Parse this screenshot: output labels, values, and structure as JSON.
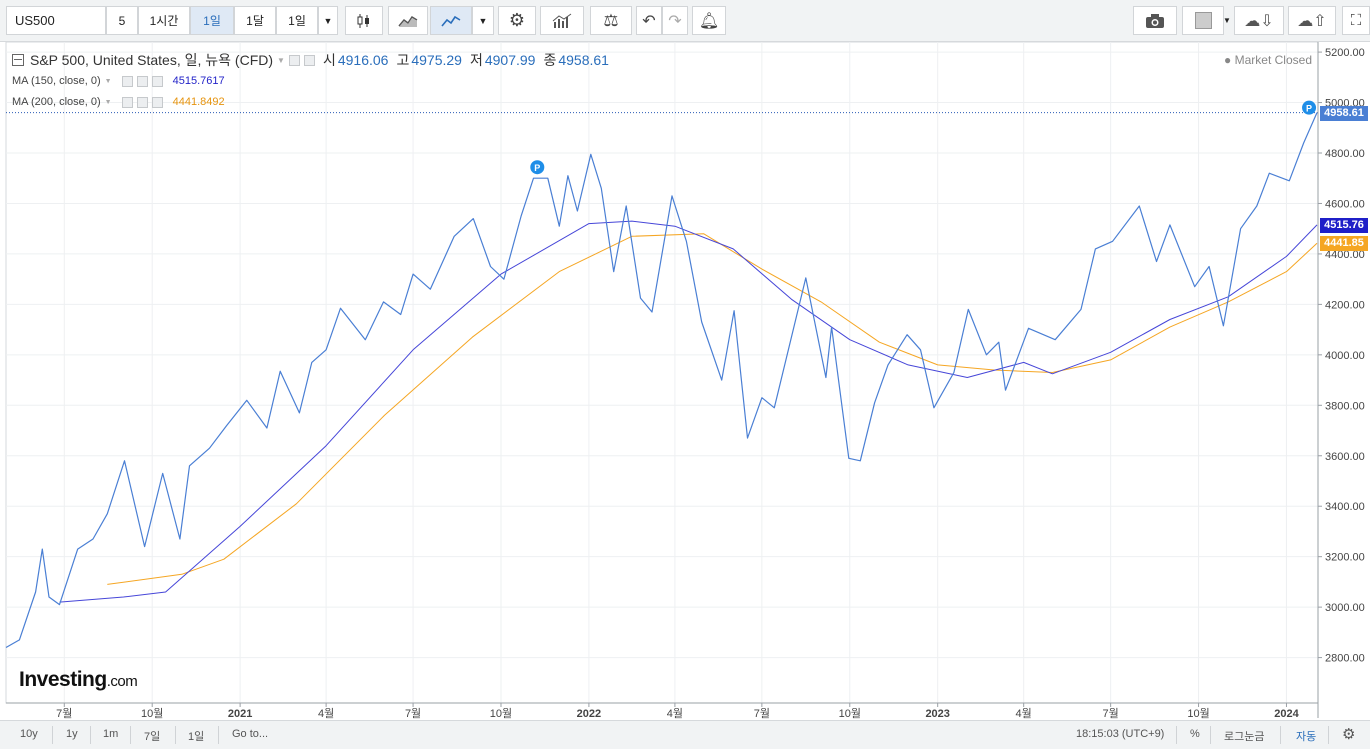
{
  "toolbar": {
    "symbol": "US500",
    "interval_5": "5",
    "interval_1h": "1시간",
    "interval_1d": "1일",
    "interval_1mo": "1달",
    "interval_1d_dropdown": "1일"
  },
  "legend": {
    "title": "S&P 500, United States, 일, 뉴욕 (CFD)",
    "open_label": "시",
    "open_value": "4916.06",
    "high_label": "고",
    "high_value": "4975.29",
    "low_label": "저",
    "low_value": "4907.99",
    "close_label": "종",
    "close_value": "4958.61",
    "ma150_label": "MA (150, close, 0)",
    "ma150_value": "4515.7617",
    "ma200_label": "MA (200, close, 0)",
    "ma200_value": "4441.8492",
    "market_status": "● Market Closed"
  },
  "price_labels": {
    "last": "4958.61",
    "ma150": "4515.76",
    "ma200": "4441.85"
  },
  "logo": {
    "brand": "Investing",
    "suffix": ".com"
  },
  "bottombar": {
    "ranges": [
      "10y",
      "1y",
      "1m",
      "7일",
      "1일"
    ],
    "goto": "Go to...",
    "time": "18:15:03 (UTC+9)",
    "percent": "%",
    "log": "로그눈금",
    "auto": "자동"
  },
  "colors": {
    "price": "#4a7fd4",
    "ma150": "#4646d8",
    "ma200": "#f5a623",
    "last_box": "#4a7fd4",
    "ma150_box": "#1f1fc8",
    "ma200_box": "#f5a623"
  },
  "chart_data": {
    "type": "line",
    "title": "S&P 500, United States, 일, 뉴욕 (CFD)",
    "ylim": [
      2620,
      5240
    ],
    "y_ticks": [
      2800,
      3000,
      3200,
      3400,
      3600,
      3800,
      4000,
      4200,
      4400,
      4600,
      4800,
      5000,
      5200
    ],
    "x_ticks": [
      "7월",
      "10월",
      "2021",
      "4월",
      "7월",
      "10월",
      "2022",
      "4월",
      "7월",
      "10월",
      "2023",
      "4월",
      "7월",
      "10월",
      "2024"
    ],
    "x_tick_dates": [
      "2020-07-01",
      "2020-10-01",
      "2021-01-01",
      "2021-04-01",
      "2021-07-01",
      "2021-10-01",
      "2022-01-01",
      "2022-04-01",
      "2022-07-01",
      "2022-10-01",
      "2023-01-01",
      "2023-04-01",
      "2023-07-01",
      "2023-10-01",
      "2024-01-01"
    ],
    "xlim": [
      "2020-05-01",
      "2024-02-03"
    ],
    "grid": true,
    "series": [
      {
        "name": "S&P 500",
        "points": [
          [
            "2020-05-01",
            2840
          ],
          [
            "2020-05-15",
            2870
          ],
          [
            "2020-06-01",
            3060
          ],
          [
            "2020-06-08",
            3230
          ],
          [
            "2020-06-15",
            3040
          ],
          [
            "2020-06-26",
            3010
          ],
          [
            "2020-07-15",
            3230
          ],
          [
            "2020-07-31",
            3270
          ],
          [
            "2020-08-15",
            3370
          ],
          [
            "2020-09-02",
            3580
          ],
          [
            "2020-09-23",
            3240
          ],
          [
            "2020-10-12",
            3530
          ],
          [
            "2020-10-30",
            3270
          ],
          [
            "2020-11-09",
            3560
          ],
          [
            "2020-11-30",
            3630
          ],
          [
            "2020-12-18",
            3720
          ],
          [
            "2021-01-08",
            3820
          ],
          [
            "2021-01-29",
            3710
          ],
          [
            "2021-02-12",
            3935
          ],
          [
            "2021-03-04",
            3770
          ],
          [
            "2021-03-17",
            3970
          ],
          [
            "2021-04-01",
            4020
          ],
          [
            "2021-04-16",
            4185
          ],
          [
            "2021-05-12",
            4060
          ],
          [
            "2021-05-31",
            4210
          ],
          [
            "2021-06-18",
            4160
          ],
          [
            "2021-07-01",
            4320
          ],
          [
            "2021-07-19",
            4260
          ],
          [
            "2021-08-13",
            4470
          ],
          [
            "2021-09-02",
            4540
          ],
          [
            "2021-09-20",
            4350
          ],
          [
            "2021-10-04",
            4300
          ],
          [
            "2021-10-22",
            4550
          ],
          [
            "2021-11-04",
            4700
          ],
          [
            "2021-11-19",
            4700
          ],
          [
            "2021-12-01",
            4510
          ],
          [
            "2021-12-10",
            4710
          ],
          [
            "2021-12-20",
            4570
          ],
          [
            "2022-01-03",
            4795
          ],
          [
            "2022-01-14",
            4660
          ],
          [
            "2022-01-27",
            4330
          ],
          [
            "2022-02-09",
            4590
          ],
          [
            "2022-02-24",
            4225
          ],
          [
            "2022-03-08",
            4170
          ],
          [
            "2022-03-29",
            4630
          ],
          [
            "2022-04-13",
            4450
          ],
          [
            "2022-04-29",
            4130
          ],
          [
            "2022-05-20",
            3900
          ],
          [
            "2022-06-02",
            4175
          ],
          [
            "2022-06-16",
            3670
          ],
          [
            "2022-07-01",
            3830
          ],
          [
            "2022-07-14",
            3790
          ],
          [
            "2022-08-16",
            4305
          ],
          [
            "2022-09-06",
            3910
          ],
          [
            "2022-09-12",
            4110
          ],
          [
            "2022-09-30",
            3590
          ],
          [
            "2022-10-12",
            3580
          ],
          [
            "2022-10-27",
            3810
          ],
          [
            "2022-11-10",
            3960
          ],
          [
            "2022-11-30",
            4080
          ],
          [
            "2022-12-14",
            4020
          ],
          [
            "2022-12-28",
            3790
          ],
          [
            "2023-01-18",
            3930
          ],
          [
            "2023-02-02",
            4180
          ],
          [
            "2023-02-21",
            4000
          ],
          [
            "2023-03-06",
            4050
          ],
          [
            "2023-03-13",
            3860
          ],
          [
            "2023-04-06",
            4105
          ],
          [
            "2023-05-04",
            4060
          ],
          [
            "2023-05-31",
            4180
          ],
          [
            "2023-06-15",
            4420
          ],
          [
            "2023-07-03",
            4450
          ],
          [
            "2023-07-31",
            4590
          ],
          [
            "2023-08-18",
            4370
          ],
          [
            "2023-09-01",
            4515
          ],
          [
            "2023-09-27",
            4270
          ],
          [
            "2023-10-12",
            4350
          ],
          [
            "2023-10-27",
            4115
          ],
          [
            "2023-11-14",
            4500
          ],
          [
            "2023-12-01",
            4590
          ],
          [
            "2023-12-14",
            4720
          ],
          [
            "2024-01-04",
            4690
          ],
          [
            "2024-01-19",
            4840
          ],
          [
            "2024-02-02",
            4960
          ]
        ]
      },
      {
        "name": "MA (150, close, 0)",
        "points": [
          [
            "2020-06-26",
            3020
          ],
          [
            "2020-09-01",
            3040
          ],
          [
            "2020-10-15",
            3060
          ],
          [
            "2021-01-01",
            3320
          ],
          [
            "2021-04-01",
            3640
          ],
          [
            "2021-07-01",
            4020
          ],
          [
            "2021-10-01",
            4320
          ],
          [
            "2022-01-01",
            4520
          ],
          [
            "2022-02-15",
            4530
          ],
          [
            "2022-04-01",
            4510
          ],
          [
            "2022-06-01",
            4420
          ],
          [
            "2022-08-01",
            4220
          ],
          [
            "2022-10-01",
            4060
          ],
          [
            "2022-12-01",
            3960
          ],
          [
            "2023-02-01",
            3910
          ],
          [
            "2023-04-01",
            3970
          ],
          [
            "2023-05-01",
            3925
          ],
          [
            "2023-07-01",
            4010
          ],
          [
            "2023-09-01",
            4140
          ],
          [
            "2023-11-01",
            4230
          ],
          [
            "2024-01-01",
            4390
          ],
          [
            "2024-02-02",
            4515
          ]
        ]
      },
      {
        "name": "MA (200, close, 0)",
        "points": [
          [
            "2020-08-15",
            3090
          ],
          [
            "2020-11-01",
            3130
          ],
          [
            "2020-12-15",
            3190
          ],
          [
            "2021-03-01",
            3410
          ],
          [
            "2021-06-01",
            3760
          ],
          [
            "2021-09-01",
            4070
          ],
          [
            "2021-12-01",
            4330
          ],
          [
            "2022-02-15",
            4470
          ],
          [
            "2022-05-01",
            4480
          ],
          [
            "2022-07-01",
            4340
          ],
          [
            "2022-09-01",
            4210
          ],
          [
            "2022-11-01",
            4050
          ],
          [
            "2023-01-01",
            3960
          ],
          [
            "2023-03-01",
            3940
          ],
          [
            "2023-05-01",
            3930
          ],
          [
            "2023-07-01",
            3980
          ],
          [
            "2023-09-01",
            4110
          ],
          [
            "2023-11-01",
            4210
          ],
          [
            "2024-01-01",
            4330
          ],
          [
            "2024-02-02",
            4442
          ]
        ]
      }
    ]
  }
}
